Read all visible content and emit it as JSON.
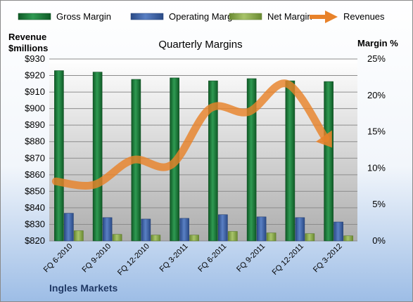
{
  "chart_data": {
    "type": "bar",
    "title": "Quarterly Margins",
    "left_axis_label_line1": "Revenue",
    "left_axis_label_line2": "$millions",
    "right_axis_label": "Margin %",
    "footer": "Ingles Markets",
    "legend": [
      "Gross Margin",
      "Operating Margin",
      "Net Margin",
      "Revenues"
    ],
    "categories": [
      "FQ 6-2010",
      "FQ 9-2010",
      "FQ 12-2010",
      "FQ 3-2011",
      "FQ 6-2011",
      "FQ 9-2011",
      "FQ 12-2011",
      "FQ 3-2012"
    ],
    "left_axis": {
      "min": 820,
      "max": 930,
      "step": 10,
      "tick_labels": [
        "$820",
        "$830",
        "$840",
        "$850",
        "$860",
        "$870",
        "$880",
        "$890",
        "$900",
        "$910",
        "$920",
        "$930"
      ]
    },
    "right_axis": {
      "min": 0,
      "max": 25,
      "step": 5,
      "tick_labels": [
        "0%",
        "5%",
        "10%",
        "15%",
        "20%",
        "25%"
      ]
    },
    "series": [
      {
        "name": "Gross Margin",
        "axis": "right",
        "color": "#1e7a3c",
        "values": [
          23.4,
          23.2,
          22.2,
          22.4,
          22.0,
          22.3,
          22.0,
          21.9
        ]
      },
      {
        "name": "Operating Margin",
        "axis": "right",
        "color": "#3b5fa3",
        "values": [
          3.8,
          3.2,
          3.0,
          3.1,
          3.6,
          3.3,
          3.2,
          2.6
        ]
      },
      {
        "name": "Net Margin",
        "axis": "right",
        "color": "#8aa64a",
        "values": [
          1.4,
          0.9,
          0.8,
          0.8,
          1.3,
          1.1,
          1.0,
          0.7
        ]
      },
      {
        "name": "Revenues",
        "axis": "left",
        "color": "#e8822a",
        "values": [
          856,
          854,
          869,
          866,
          900,
          898,
          915,
          882
        ]
      }
    ],
    "grid": true,
    "legend_position": "top"
  }
}
